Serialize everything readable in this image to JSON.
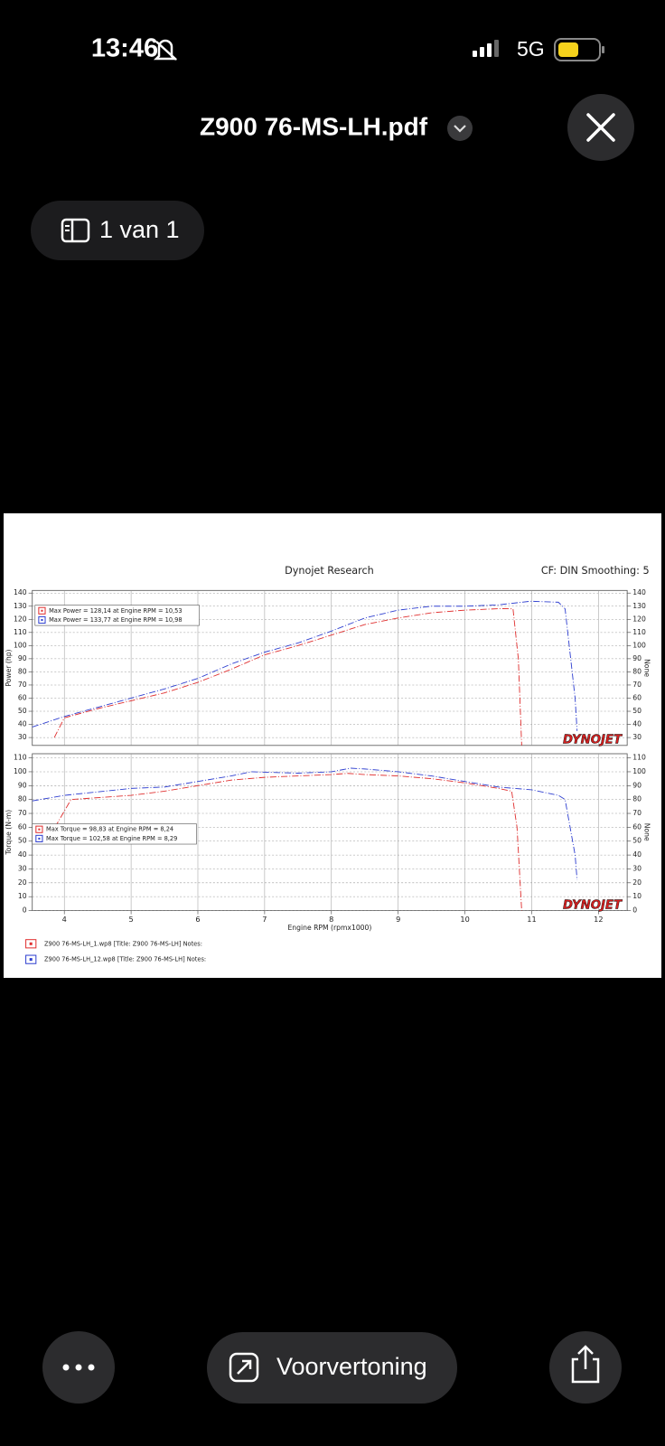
{
  "status_bar": {
    "time": "13:46",
    "network": "5G"
  },
  "header": {
    "title": "Z900 76-MS-LH.pdf"
  },
  "page_indicator": "1 van 1",
  "toolbar": {
    "preview_button": "Voorvertoning"
  },
  "chart_data": [
    {
      "type": "line",
      "title": "Dynojet Research",
      "subtitle": "CF: DIN Smoothing: 5",
      "ylabel": "Power (hp)",
      "y2label": "None",
      "watermark": "DYNOJET",
      "xlim": [
        3.52,
        12.43
      ],
      "xticks": [
        4,
        5,
        6,
        7,
        8,
        9,
        10,
        11,
        12
      ],
      "ylim": [
        24,
        142
      ],
      "yticks": [
        30,
        40,
        50,
        60,
        70,
        80,
        90,
        100,
        110,
        120,
        130,
        140
      ],
      "y2lim": [
        24,
        142
      ],
      "y2ticks": [
        30,
        40,
        50,
        60,
        70,
        80,
        90,
        100,
        110,
        120,
        130,
        140
      ],
      "grid": true,
      "annotations": [
        "Max Power = 128,14 at Engine RPM = 10,53",
        "Max Power = 133,77 at Engine RPM = 10,98"
      ],
      "series": [
        {
          "name": "Z900 76-MS-LH_1.wp8 [Title: Z900 76-MS-LH]  Notes:",
          "color": "#e03030",
          "x": [
            3.85,
            4.0,
            4.5,
            5.0,
            5.5,
            6.0,
            6.5,
            7.0,
            7.5,
            8.0,
            8.5,
            9.0,
            9.5,
            10.0,
            10.53,
            10.72,
            10.8,
            10.85
          ],
          "values": [
            30,
            45,
            52,
            58,
            64,
            72,
            82,
            93,
            100,
            108,
            116,
            121,
            125,
            127,
            128.14,
            128,
            90,
            24
          ]
        },
        {
          "name": "Z900 76-MS-LH_12.wp8 [Title: Z900 76-MS-LH]  Notes:",
          "color": "#3040d0",
          "x": [
            3.52,
            4.0,
            4.5,
            5.0,
            5.5,
            6.0,
            6.5,
            7.0,
            7.5,
            8.0,
            8.5,
            9.0,
            9.5,
            10.0,
            10.5,
            10.98,
            11.4,
            11.5,
            11.65,
            11.68
          ],
          "values": [
            38,
            46,
            53,
            60,
            67,
            75,
            86,
            95,
            102,
            111,
            121,
            127,
            130,
            130,
            131,
            133.77,
            133,
            128,
            60,
            35
          ]
        }
      ]
    },
    {
      "type": "line",
      "ylabel": "Torque (N-m)",
      "y2label": "None",
      "xlabel": "Engine RPM (rpmx1000)",
      "watermark": "DYNOJET",
      "xlim": [
        3.52,
        12.43
      ],
      "xticks": [
        4,
        5,
        6,
        7,
        8,
        9,
        10,
        11,
        12
      ],
      "ylim": [
        0,
        113
      ],
      "yticks": [
        0,
        10,
        20,
        30,
        40,
        50,
        60,
        70,
        80,
        90,
        100,
        110
      ],
      "y2lim": [
        0,
        113
      ],
      "y2ticks": [
        0,
        10,
        20,
        30,
        40,
        50,
        60,
        70,
        80,
        90,
        100,
        110
      ],
      "grid": true,
      "annotations": [
        "Max Torque = 98,83 at Engine RPM = 8,24",
        "Max Torque = 102,58 at Engine RPM = 8,29"
      ],
      "series": [
        {
          "color": "#e03030",
          "x": [
            3.86,
            4.1,
            5.0,
            5.5,
            6.0,
            6.5,
            7.0,
            7.5,
            8.0,
            8.24,
            8.5,
            9.0,
            9.5,
            10.0,
            10.5,
            10.7,
            10.78,
            10.85
          ],
          "values": [
            60,
            80,
            83,
            86,
            90,
            94,
            96,
            97,
            98,
            98.83,
            98,
            97,
            95,
            92,
            88,
            86,
            60,
            0
          ]
        },
        {
          "color": "#3040d0",
          "x": [
            3.52,
            4.0,
            5.0,
            5.5,
            6.0,
            6.5,
            6.8,
            7.5,
            8.0,
            8.29,
            8.5,
            9.0,
            9.5,
            10.0,
            10.5,
            11.0,
            11.4,
            11.5,
            11.65,
            11.68
          ],
          "values": [
            79,
            83,
            88,
            89,
            93,
            97,
            100,
            99,
            100,
            102.58,
            102,
            100,
            97,
            93,
            89,
            87,
            83,
            80,
            40,
            22
          ]
        }
      ]
    }
  ]
}
